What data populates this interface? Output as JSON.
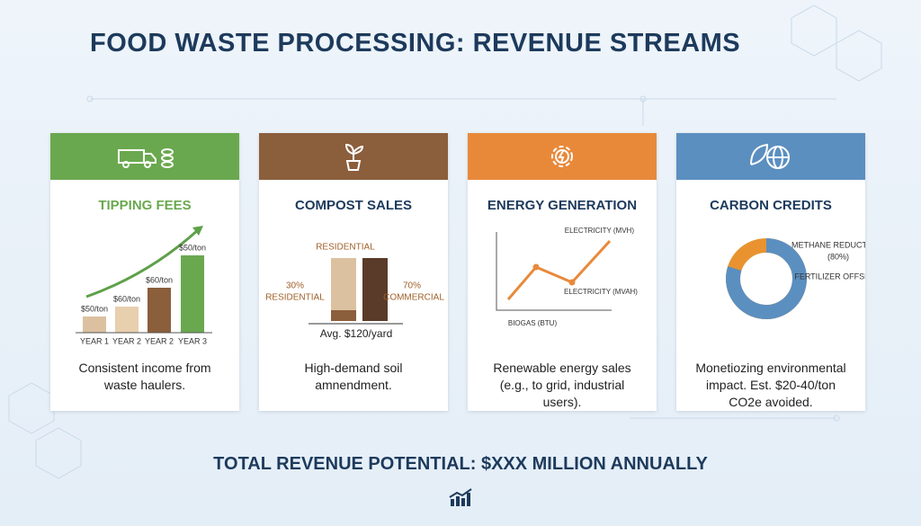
{
  "title": "FOOD WASTE PROCESSING: REVENUE STREAMS",
  "cards": [
    {
      "title": "TIPPING FEES",
      "chart": {
        "bar_labels": [
          "$50/ton",
          "$60/ton",
          "$60/ton",
          "$50/ton"
        ],
        "categories": [
          "YEAR 1",
          "YEAR 2",
          "YEAR 2",
          "YEAR 3"
        ]
      },
      "description": "Consistent income from waste haulers."
    },
    {
      "title": "COMPOST SALES",
      "chart": {
        "top_label": "RESIDENTIAL",
        "left_share": "30%",
        "left_name": "RESIDENTIAL",
        "right_share": "70%",
        "right_name": "COMMERCIAL",
        "note": "Avg. $120/yard"
      },
      "description": "High-demand soil amnendment."
    },
    {
      "title": "ENERGY GENERATION",
      "chart": {
        "top_label": "ELECTRICITY (MVH)",
        "mid_label": "ELECTRICITY (MVAH)",
        "x_label": "BIOGAS (BTU)"
      },
      "description": "Renewable energy sales (e.g., to grid, industrial users)."
    },
    {
      "title": "CARBON CREDITS",
      "chart": {
        "label_1": "METHANE REDUCTION",
        "share": {
          "value": 80,
          "label": "(80%)"
        },
        "label_2": "FERTILIZER OFFSET"
      },
      "description": "Monetiozing environmental impact. Est. $20-40/ton CO2e avoided."
    }
  ],
  "footer": "TOTAL REVENUE POTENTIAL: $XXX MILLION ANNUALLY"
}
